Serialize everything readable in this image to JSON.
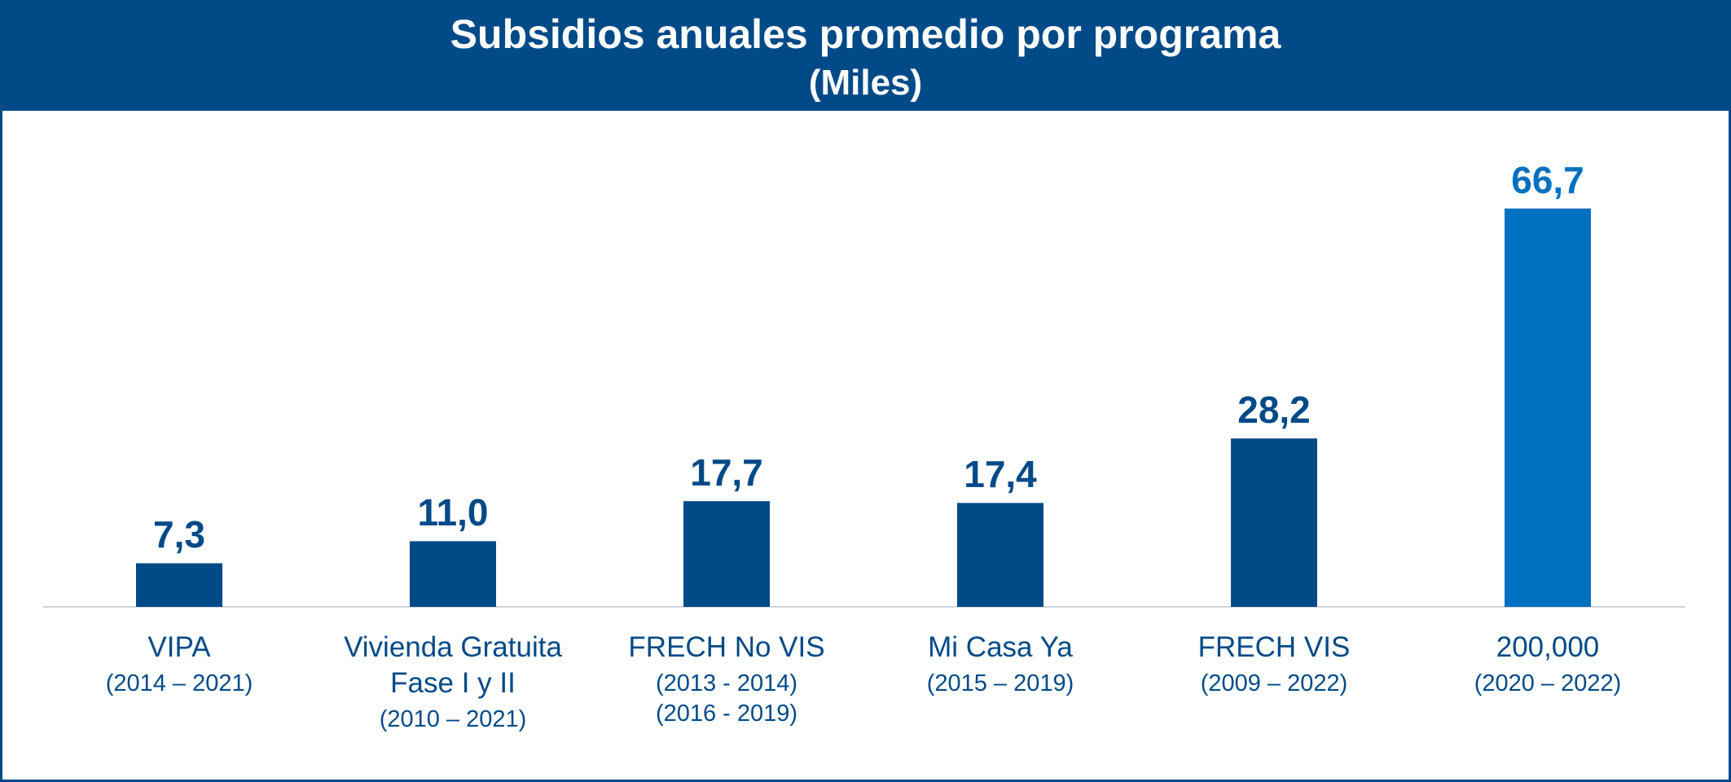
{
  "chart_data": {
    "type": "bar",
    "title": "Subsidios anuales promedio por programa",
    "subtitle": "(Miles)",
    "categories": [
      "VIPA",
      "Vivienda Gratuita\nFase I y II",
      "FRECH No VIS",
      "Mi Casa Ya",
      "FRECH VIS",
      "200,000"
    ],
    "periods": [
      [
        "(2014 – 2021)"
      ],
      [
        "(2010 – 2021)"
      ],
      [
        "(2013 - 2014)",
        "(2016 - 2019)"
      ],
      [
        "(2015 – 2019)"
      ],
      [
        "(2009 – 2022)"
      ],
      [
        "(2020 – 2022)"
      ]
    ],
    "values": [
      7.3,
      11.0,
      17.7,
      17.4,
      28.2,
      66.7
    ],
    "value_labels": [
      "7,3",
      "11,0",
      "17,7",
      "17,4",
      "28,2",
      "66,7"
    ],
    "colors": [
      "#004a87",
      "#004a87",
      "#004a87",
      "#004a87",
      "#004a87",
      "#0070c0"
    ]
  }
}
